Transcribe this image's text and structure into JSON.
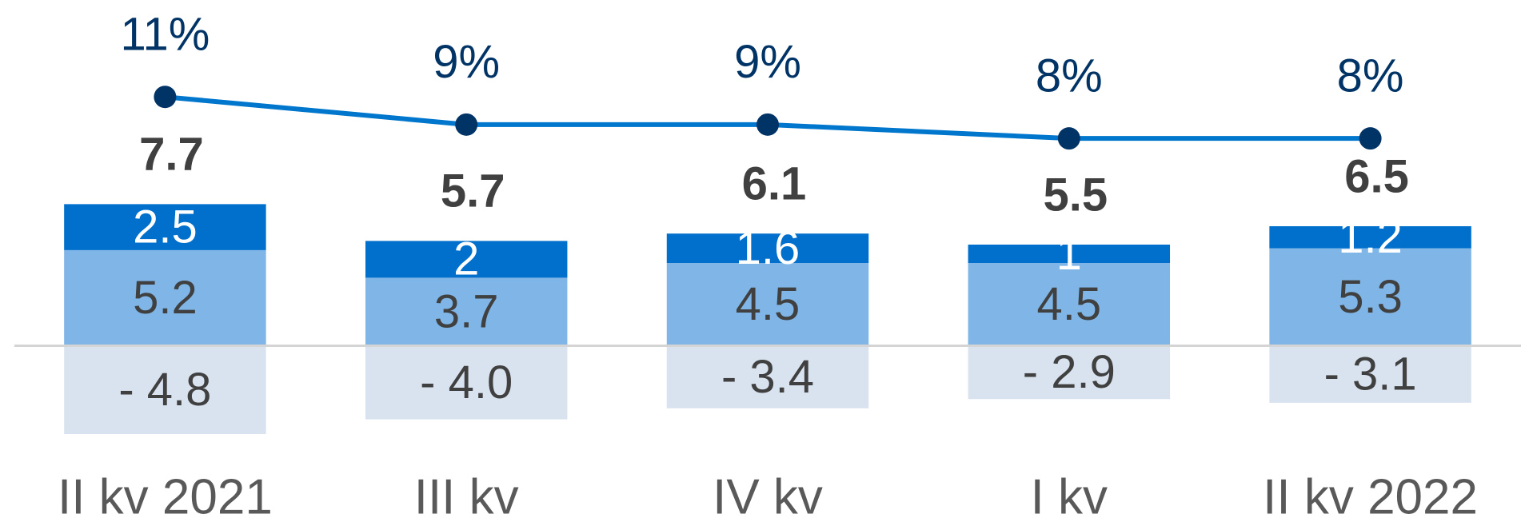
{
  "chart_data": {
    "type": "bar",
    "categories": [
      "II kv 2021",
      "III kv",
      "IV kv",
      "I kv",
      "II kv 2022"
    ],
    "series": [
      {
        "color": "#7fb6e7",
        "text_color": "#404040",
        "values": [
          5.2,
          3.7,
          4.5,
          4.5,
          5.3
        ]
      },
      {
        "color": "#0070cc",
        "text_color": "#ffffff",
        "values": [
          2.5,
          2.0,
          1.6,
          1.0,
          1.2
        ]
      },
      {
        "color": "#d9e3f0",
        "text_color": "#404040",
        "values": [
          -4.8,
          -4.0,
          -3.4,
          -2.9,
          -3.1
        ],
        "value_labels": [
          "- 4.8",
          "- 4.0",
          "- 3.4",
          "- 2.9",
          "- 3.1"
        ]
      }
    ],
    "totals": {
      "values": [
        7.7,
        5.7,
        6.1,
        5.5,
        6.5
      ]
    },
    "line": {
      "type": "line",
      "axis": "y2",
      "color": "#0077cc",
      "marker_color": "#003366",
      "values": [
        11,
        9,
        9,
        8,
        8
      ],
      "value_labels": [
        "11%",
        "9%",
        "9%",
        "8%",
        "8%"
      ]
    },
    "ylim": [
      -9.8,
      18.8
    ],
    "y2lim": [
      -20,
      18
    ]
  }
}
